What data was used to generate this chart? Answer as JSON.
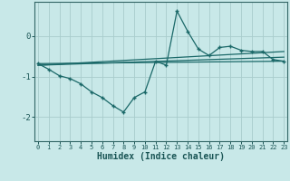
{
  "xlabel": "Humidex (Indice chaleur)",
  "bg_color": "#c8e8e8",
  "grid_color": "#a8cccc",
  "line_color": "#1a6868",
  "x_data": [
    0,
    1,
    2,
    3,
    4,
    5,
    6,
    7,
    8,
    9,
    10,
    11,
    12,
    13,
    14,
    15,
    16,
    17,
    18,
    19,
    20,
    21,
    22,
    23
  ],
  "y_main": [
    -0.68,
    -0.82,
    -0.98,
    -1.05,
    -1.18,
    -1.38,
    -1.52,
    -1.72,
    -1.88,
    -1.52,
    -1.38,
    -0.62,
    -0.72,
    0.62,
    0.12,
    -0.32,
    -0.48,
    -0.28,
    -0.25,
    -0.35,
    -0.38,
    -0.38,
    -0.58,
    -0.62
  ],
  "trend_lines": [
    {
      "x": [
        0,
        23
      ],
      "y": [
        -0.68,
        -0.62
      ]
    },
    {
      "x": [
        0,
        23
      ],
      "y": [
        -0.72,
        -0.52
      ]
    },
    {
      "x": [
        0,
        23
      ],
      "y": [
        -0.72,
        -0.38
      ]
    }
  ],
  "xlim": [
    -0.3,
    23.3
  ],
  "ylim": [
    -2.6,
    0.85
  ],
  "yticks": [
    -2,
    -1,
    0
  ],
  "xticks": [
    0,
    1,
    2,
    3,
    4,
    5,
    6,
    7,
    8,
    9,
    10,
    11,
    12,
    13,
    14,
    15,
    16,
    17,
    18,
    19,
    20,
    21,
    22,
    23
  ]
}
